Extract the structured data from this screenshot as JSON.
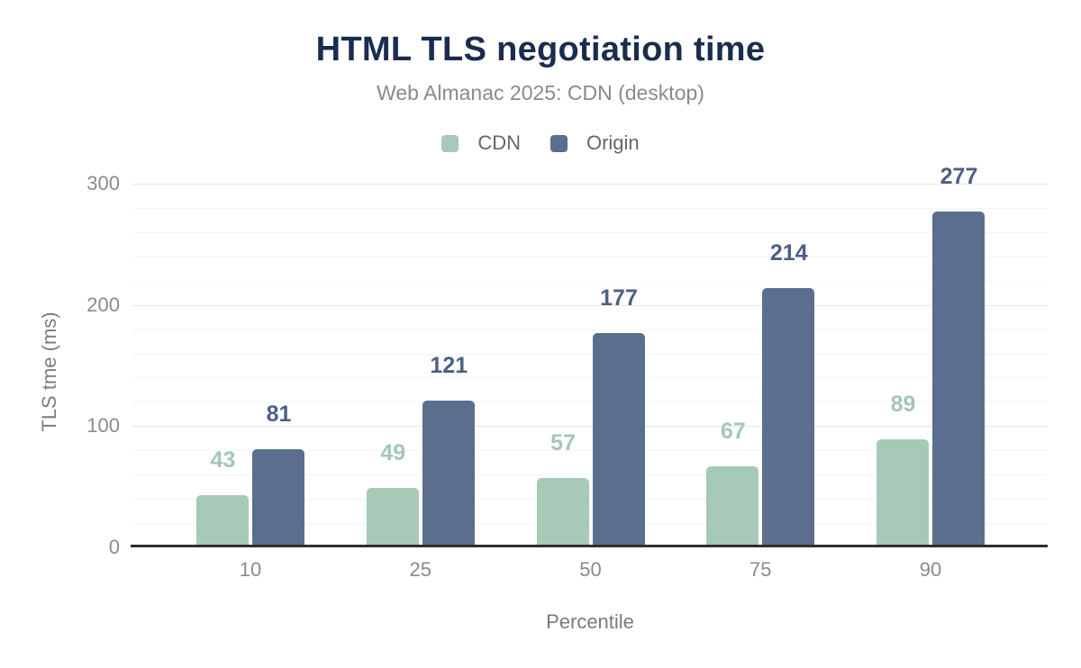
{
  "chart_data": {
    "type": "bar",
    "title": "HTML TLS negotiation time",
    "subtitle": "Web Almanac 2025: CDN (desktop)",
    "xlabel": "Percentile",
    "ylabel": "TLS tme (ms)",
    "categories": [
      "10",
      "25",
      "50",
      "75",
      "90"
    ],
    "series": [
      {
        "name": "CDN",
        "color": "#a7c9b8",
        "label_color": "#a4c7b5",
        "values": [
          43,
          49,
          57,
          67,
          89
        ]
      },
      {
        "name": "Origin",
        "color": "#5b6e8e",
        "label_color": "#4d6084",
        "values": [
          81,
          121,
          177,
          214,
          277
        ]
      }
    ],
    "ylim": [
      0,
      300
    ],
    "yticks": [
      0,
      100,
      200,
      300
    ],
    "grid_minor_step": 20,
    "grid": "on",
    "legend_position": "top"
  },
  "colors": {
    "background": "#ffffff",
    "title": "#1b2d4e",
    "subtitle": "#8a8a8a",
    "legend_text": "#666666",
    "axis_text": "#8b8b8b",
    "axis_title": "#7c7c7c",
    "axis_line": "#2f2f2f",
    "grid_major": "#e8e8e8",
    "grid_minor": "#f4f4f4"
  }
}
